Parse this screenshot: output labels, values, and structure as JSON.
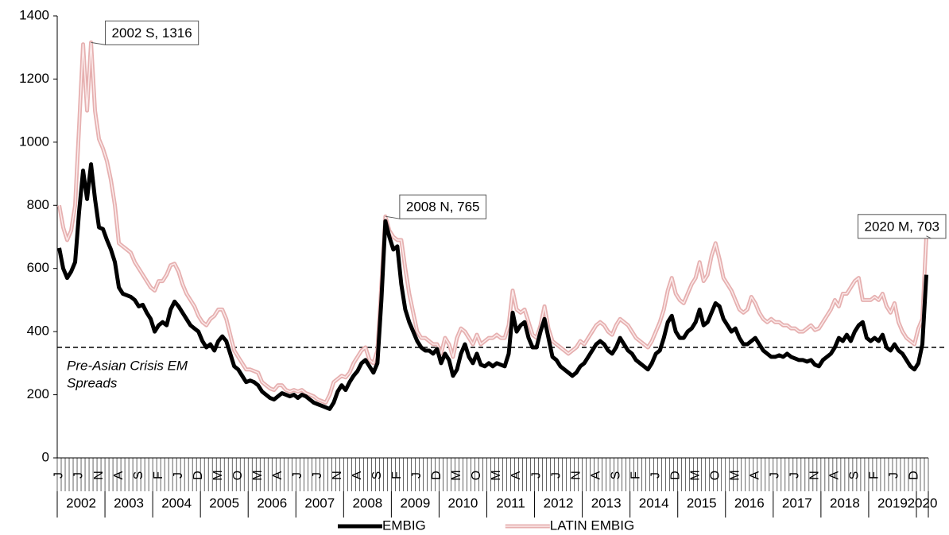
{
  "chart_data": {
    "type": "line",
    "categories": [
      "J",
      null,
      null,
      null,
      null,
      "J",
      null,
      null,
      null,
      null,
      "N",
      null,
      null,
      null,
      null,
      "A",
      null,
      null,
      null,
      null,
      "S",
      null,
      null,
      null,
      null,
      "F",
      null,
      null,
      null,
      null,
      "J",
      null,
      null,
      null,
      null,
      "D",
      null,
      null,
      null,
      null,
      "M",
      null,
      null,
      null,
      null,
      "O",
      null,
      null,
      null,
      null,
      "M",
      null,
      null,
      null,
      null,
      "A",
      null,
      null,
      null,
      null,
      "J",
      null,
      null,
      null,
      null,
      "J",
      null,
      null,
      null,
      null,
      "N",
      null,
      null,
      null,
      null,
      "A",
      null,
      null,
      null,
      null,
      "S",
      null,
      null,
      null,
      null,
      "F",
      null,
      null,
      null,
      null,
      "J",
      null,
      null,
      null,
      null,
      "D",
      null,
      null,
      null,
      null,
      "M",
      null,
      null,
      null,
      null,
      "O",
      null,
      null,
      null,
      null,
      "M",
      null,
      null,
      null,
      null,
      "A",
      null,
      null,
      null,
      null,
      "J",
      null,
      null,
      null,
      null,
      "J",
      null,
      null,
      null,
      null,
      "N",
      null,
      null,
      null,
      null,
      "A",
      null,
      null,
      null,
      null,
      "S",
      null,
      null,
      null,
      null,
      "F",
      null,
      null,
      null,
      null,
      "J",
      null,
      null,
      null,
      null,
      "D",
      null,
      null,
      null,
      null,
      "M",
      null,
      null,
      null,
      null,
      "O",
      null,
      null,
      null,
      null,
      "M",
      null,
      null,
      null,
      null,
      "A",
      null,
      null,
      null,
      null,
      "J",
      null,
      null,
      null,
      null,
      "J",
      null,
      null,
      null,
      null,
      "N",
      null,
      null,
      null,
      null,
      "A",
      null,
      null,
      null,
      null,
      "S",
      null,
      null,
      null,
      null,
      "F",
      null,
      null,
      null,
      null,
      "J",
      null,
      null,
      null,
      null,
      "D",
      null,
      null,
      null
    ],
    "years": [
      "2002",
      "2003",
      "2004",
      "2005",
      "2006",
      "2007",
      "2008",
      "2009",
      "2010",
      "2011",
      "2012",
      "2013",
      "2014",
      "2015",
      "2016",
      "2017",
      "2018",
      "2019",
      "2020"
    ],
    "series": [
      {
        "name": "EMBIG",
        "color": "#000000",
        "values": [
          665,
          600,
          570,
          590,
          620,
          780,
          910,
          820,
          930,
          820,
          730,
          725,
          690,
          660,
          620,
          540,
          520,
          515,
          510,
          500,
          480,
          485,
          460,
          440,
          400,
          420,
          430,
          420,
          470,
          495,
          480,
          460,
          440,
          420,
          410,
          400,
          370,
          350,
          360,
          340,
          370,
          385,
          370,
          330,
          290,
          280,
          260,
          240,
          245,
          240,
          230,
          210,
          200,
          190,
          185,
          195,
          205,
          200,
          195,
          200,
          190,
          200,
          195,
          185,
          175,
          170,
          165,
          160,
          155,
          175,
          210,
          230,
          215,
          240,
          260,
          275,
          300,
          310,
          290,
          270,
          300,
          500,
          750,
          700,
          660,
          670,
          550,
          470,
          430,
          400,
          370,
          350,
          340,
          340,
          330,
          345,
          300,
          330,
          310,
          260,
          280,
          330,
          360,
          320,
          300,
          330,
          295,
          290,
          300,
          290,
          300,
          295,
          290,
          330,
          460,
          400,
          420,
          430,
          380,
          350,
          350,
          400,
          440,
          380,
          320,
          310,
          290,
          280,
          270,
          260,
          270,
          290,
          300,
          320,
          340,
          360,
          370,
          360,
          340,
          330,
          350,
          380,
          360,
          340,
          330,
          310,
          300,
          290,
          280,
          300,
          330,
          340,
          380,
          430,
          450,
          400,
          380,
          380,
          400,
          410,
          430,
          470,
          420,
          430,
          460,
          490,
          480,
          440,
          420,
          400,
          410,
          380,
          360,
          360,
          370,
          380,
          360,
          340,
          330,
          320,
          320,
          325,
          320,
          330,
          320,
          315,
          310,
          310,
          305,
          310,
          295,
          290,
          310,
          320,
          330,
          350,
          380,
          370,
          390,
          370,
          400,
          420,
          430,
          380,
          370,
          380,
          370,
          390,
          350,
          340,
          360,
          340,
          330,
          310,
          290,
          280,
          300,
          360,
          580
        ]
      },
      {
        "name": "LATIN EMBIG",
        "color": "#e6b0b0",
        "values": [
          800,
          730,
          690,
          720,
          800,
          1050,
          1310,
          1100,
          1316,
          1100,
          1010,
          980,
          940,
          880,
          800,
          680,
          670,
          660,
          650,
          620,
          600,
          580,
          560,
          540,
          530,
          560,
          560,
          580,
          610,
          615,
          590,
          550,
          520,
          500,
          480,
          450,
          430,
          420,
          440,
          450,
          470,
          470,
          440,
          390,
          340,
          320,
          300,
          280,
          280,
          275,
          270,
          240,
          230,
          220,
          215,
          230,
          230,
          215,
          210,
          215,
          210,
          215,
          205,
          200,
          195,
          185,
          180,
          175,
          200,
          240,
          250,
          260,
          255,
          270,
          300,
          320,
          340,
          350,
          310,
          300,
          340,
          550,
          765,
          720,
          700,
          690,
          690,
          600,
          520,
          460,
          400,
          380,
          380,
          370,
          360,
          360,
          330,
          380,
          360,
          320,
          380,
          410,
          400,
          380,
          360,
          390,
          360,
          370,
          380,
          380,
          390,
          380,
          380,
          420,
          530,
          470,
          460,
          470,
          430,
          390,
          380,
          420,
          480,
          410,
          370,
          360,
          350,
          340,
          330,
          340,
          350,
          370,
          360,
          380,
          400,
          420,
          430,
          420,
          400,
          390,
          420,
          440,
          430,
          420,
          400,
          380,
          370,
          360,
          350,
          370,
          400,
          430,
          470,
          530,
          570,
          520,
          500,
          490,
          520,
          550,
          570,
          620,
          560,
          580,
          640,
          680,
          630,
          570,
          550,
          530,
          500,
          470,
          460,
          470,
          510,
          490,
          460,
          440,
          430,
          440,
          430,
          430,
          420,
          420,
          410,
          410,
          400,
          400,
          410,
          420,
          405,
          410,
          430,
          450,
          470,
          500,
          480,
          520,
          520,
          540,
          560,
          570,
          500,
          500,
          500,
          510,
          500,
          520,
          480,
          460,
          490,
          430,
          400,
          380,
          370,
          360,
          410,
          440,
          703
        ]
      }
    ],
    "ylim": [
      0,
      1400
    ],
    "yticks": [
      0,
      200,
      400,
      600,
      800,
      1000,
      1200,
      1400
    ],
    "reference_line": {
      "value": 350,
      "label": [
        "Pre-Asian Crisis EM",
        "Spreads"
      ]
    },
    "annotations": [
      {
        "text": "2002 S, 1316",
        "at": "chart_data.series.1.values.8"
      },
      {
        "text": "2008 N, 765",
        "at": "chart_data.series.1.values.82"
      },
      {
        "text": "2020 M, 703",
        "at": "chart_data.series.1.values.218"
      }
    ]
  }
}
